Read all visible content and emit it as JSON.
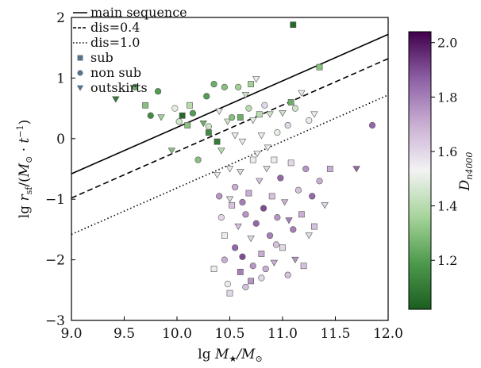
{
  "chart_data": {
    "type": "scatter",
    "xlabel_parts": [
      "lg ",
      "M",
      "★",
      "/M",
      "⊙"
    ],
    "ylabel_parts": [
      "lg ",
      "r",
      "sf",
      "/(",
      "M",
      "⊙",
      " · ",
      "t",
      "−1",
      ")"
    ],
    "xlim": [
      9.0,
      12.0
    ],
    "ylim": [
      -3,
      2
    ],
    "xticks": [
      9.0,
      9.5,
      10.0,
      10.5,
      11.0,
      11.5,
      12.0
    ],
    "xtick_labels": [
      "9.0",
      "9.5",
      "10.0",
      "10.5",
      "11.0",
      "11.5",
      "12.0"
    ],
    "yticks": [
      -3,
      -2,
      -1,
      0,
      1,
      2
    ],
    "ytick_labels": [
      "−3",
      "−2",
      "−1",
      "0",
      "1",
      "2"
    ],
    "lines": [
      {
        "name": "main sequence",
        "style": "solid",
        "x": [
          9.0,
          12.0
        ],
        "y": [
          -0.58,
          1.72
        ]
      },
      {
        "name": "dis=0.4",
        "style": "dashed",
        "x": [
          9.0,
          12.0
        ],
        "y": [
          -0.98,
          1.32
        ]
      },
      {
        "name": "dis=1.0",
        "style": "dotted",
        "x": [
          9.0,
          12.0
        ],
        "y": [
          -1.58,
          0.72
        ]
      }
    ],
    "marker_legend": [
      {
        "name": "sub",
        "marker": "square"
      },
      {
        "name": "non sub",
        "marker": "circle"
      },
      {
        "name": "outskirts",
        "marker": "triangle"
      }
    ],
    "colorbar": {
      "label_main": "D",
      "label_sub": "n4000",
      "range": [
        1.02,
        2.04
      ],
      "ticks": [
        1.2,
        1.4,
        1.6,
        1.8,
        2.0
      ],
      "tick_labels": [
        "1.2",
        "1.4",
        "1.6",
        "1.8",
        "2.0"
      ],
      "colors": [
        "#1b5e20",
        "#4d9a4d",
        "#a6d49a",
        "#f3f3f3",
        "#c9aed3",
        "#8c5ea3",
        "#40004b"
      ]
    },
    "points": [
      {
        "x": 9.42,
        "y": 0.65,
        "m": "tri",
        "c": 1.1
      },
      {
        "x": 9.6,
        "y": 0.85,
        "m": "circle",
        "c": 1.25
      },
      {
        "x": 9.7,
        "y": 0.55,
        "m": "square",
        "c": 1.3
      },
      {
        "x": 9.75,
        "y": 0.38,
        "m": "circle",
        "c": 1.15
      },
      {
        "x": 9.82,
        "y": 0.78,
        "m": "circle",
        "c": 1.2
      },
      {
        "x": 9.85,
        "y": 0.35,
        "m": "tri",
        "c": 1.35
      },
      {
        "x": 9.95,
        "y": -0.2,
        "m": "tri",
        "c": 1.3
      },
      {
        "x": 9.98,
        "y": 0.5,
        "m": "circle",
        "c": 1.5
      },
      {
        "x": 10.02,
        "y": 0.28,
        "m": "circle",
        "c": 1.45
      },
      {
        "x": 10.05,
        "y": 0.38,
        "m": "square",
        "c": 1.05
      },
      {
        "x": 10.1,
        "y": 0.22,
        "m": "square",
        "c": 1.3
      },
      {
        "x": 10.12,
        "y": 0.55,
        "m": "square",
        "c": 1.4
      },
      {
        "x": 10.15,
        "y": 0.42,
        "m": "circle",
        "c": 1.2
      },
      {
        "x": 10.2,
        "y": -0.35,
        "m": "circle",
        "c": 1.3
      },
      {
        "x": 10.25,
        "y": 0.25,
        "m": "tri",
        "c": 1.25
      },
      {
        "x": 10.28,
        "y": 0.7,
        "m": "circle",
        "c": 1.2
      },
      {
        "x": 10.3,
        "y": 0.2,
        "m": "circle",
        "c": 1.45
      },
      {
        "x": 10.3,
        "y": 0.1,
        "m": "square",
        "c": 1.15
      },
      {
        "x": 10.35,
        "y": 0.9,
        "m": "circle",
        "c": 1.25
      },
      {
        "x": 10.38,
        "y": -0.05,
        "m": "square",
        "c": 1.1
      },
      {
        "x": 10.4,
        "y": 0.45,
        "m": "tri",
        "c": 1.5
      },
      {
        "x": 10.42,
        "y": -0.2,
        "m": "tri",
        "c": 1.4
      },
      {
        "x": 10.45,
        "y": 0.85,
        "m": "circle",
        "c": 1.3
      },
      {
        "x": 10.48,
        "y": 0.28,
        "m": "tri",
        "c": 1.45
      },
      {
        "x": 10.5,
        "y": -0.5,
        "m": "tri",
        "c": 1.55
      },
      {
        "x": 10.52,
        "y": 0.35,
        "m": "circle",
        "c": 1.3
      },
      {
        "x": 10.55,
        "y": 0.05,
        "m": "tri",
        "c": 1.5
      },
      {
        "x": 10.58,
        "y": 0.85,
        "m": "circle",
        "c": 1.35
      },
      {
        "x": 10.6,
        "y": 0.35,
        "m": "square",
        "c": 1.25
      },
      {
        "x": 10.62,
        "y": -0.05,
        "m": "tri",
        "c": 1.55
      },
      {
        "x": 10.65,
        "y": 0.72,
        "m": "tri",
        "c": 1.45
      },
      {
        "x": 10.68,
        "y": 0.5,
        "m": "circle",
        "c": 1.4
      },
      {
        "x": 10.7,
        "y": 0.9,
        "m": "square",
        "c": 1.35
      },
      {
        "x": 10.72,
        "y": 0.3,
        "m": "tri",
        "c": 1.5
      },
      {
        "x": 10.75,
        "y": 0.98,
        "m": "tri",
        "c": 1.55
      },
      {
        "x": 10.78,
        "y": 0.4,
        "m": "square",
        "c": 1.4
      },
      {
        "x": 10.8,
        "y": 0.05,
        "m": "tri",
        "c": 1.55
      },
      {
        "x": 10.83,
        "y": 0.55,
        "m": "circle",
        "c": 1.6
      },
      {
        "x": 10.86,
        "y": -0.15,
        "m": "tri",
        "c": 1.5
      },
      {
        "x": 10.88,
        "y": 0.4,
        "m": "tri",
        "c": 1.45
      },
      {
        "x": 10.92,
        "y": -0.35,
        "m": "square",
        "c": 1.55
      },
      {
        "x": 10.95,
        "y": 0.1,
        "m": "circle",
        "c": 1.5
      },
      {
        "x": 11.0,
        "y": 0.42,
        "m": "tri",
        "c": 1.45
      },
      {
        "x": 11.05,
        "y": 0.22,
        "m": "circle",
        "c": 1.6
      },
      {
        "x": 11.08,
        "y": 0.6,
        "m": "square",
        "c": 1.25
      },
      {
        "x": 11.1,
        "y": 1.88,
        "m": "square",
        "c": 1.05
      },
      {
        "x": 11.12,
        "y": 0.5,
        "m": "circle",
        "c": 1.45
      },
      {
        "x": 11.18,
        "y": 0.75,
        "m": "tri",
        "c": 1.5
      },
      {
        "x": 11.25,
        "y": 0.3,
        "m": "circle",
        "c": 1.5
      },
      {
        "x": 11.3,
        "y": 0.4,
        "m": "tri",
        "c": 1.55
      },
      {
        "x": 11.35,
        "y": 1.18,
        "m": "square",
        "c": 1.3
      },
      {
        "x": 11.7,
        "y": -0.5,
        "m": "tri",
        "c": 1.85
      },
      {
        "x": 11.85,
        "y": 0.22,
        "m": "circle",
        "c": 1.85
      },
      {
        "x": 10.4,
        "y": -0.95,
        "m": "circle",
        "c": 1.75
      },
      {
        "x": 10.42,
        "y": -1.3,
        "m": "circle",
        "c": 1.6
      },
      {
        "x": 10.45,
        "y": -1.6,
        "m": "square",
        "c": 1.55
      },
      {
        "x": 10.45,
        "y": -2.0,
        "m": "circle",
        "c": 1.7
      },
      {
        "x": 10.48,
        "y": -2.4,
        "m": "circle",
        "c": 1.55
      },
      {
        "x": 10.5,
        "y": -2.55,
        "m": "square",
        "c": 1.6
      },
      {
        "x": 10.52,
        "y": -1.1,
        "m": "square",
        "c": 1.65
      },
      {
        "x": 10.55,
        "y": -1.8,
        "m": "circle",
        "c": 1.85
      },
      {
        "x": 10.55,
        "y": -0.8,
        "m": "circle",
        "c": 1.7
      },
      {
        "x": 10.58,
        "y": -1.45,
        "m": "tri",
        "c": 1.65
      },
      {
        "x": 10.6,
        "y": -2.2,
        "m": "square",
        "c": 1.8
      },
      {
        "x": 10.6,
        "y": -0.55,
        "m": "tri",
        "c": 1.6
      },
      {
        "x": 10.62,
        "y": -1.95,
        "m": "circle",
        "c": 1.9
      },
      {
        "x": 10.65,
        "y": -1.25,
        "m": "circle",
        "c": 1.75
      },
      {
        "x": 10.65,
        "y": -2.45,
        "m": "circle",
        "c": 1.65
      },
      {
        "x": 10.68,
        "y": -0.9,
        "m": "square",
        "c": 1.7
      },
      {
        "x": 10.7,
        "y": -1.65,
        "m": "tri",
        "c": 1.6
      },
      {
        "x": 10.72,
        "y": -2.1,
        "m": "circle",
        "c": 1.75
      },
      {
        "x": 10.72,
        "y": -0.35,
        "m": "square",
        "c": 1.55
      },
      {
        "x": 10.75,
        "y": -1.4,
        "m": "circle",
        "c": 1.85
      },
      {
        "x": 10.78,
        "y": -0.7,
        "m": "tri",
        "c": 1.65
      },
      {
        "x": 10.8,
        "y": -1.9,
        "m": "square",
        "c": 1.7
      },
      {
        "x": 10.8,
        "y": -2.3,
        "m": "circle",
        "c": 1.6
      },
      {
        "x": 10.82,
        "y": -1.15,
        "m": "circle",
        "c": 1.9
      },
      {
        "x": 10.85,
        "y": -0.5,
        "m": "tri",
        "c": 1.6
      },
      {
        "x": 10.88,
        "y": -1.6,
        "m": "circle",
        "c": 1.8
      },
      {
        "x": 10.9,
        "y": -0.95,
        "m": "square",
        "c": 1.65
      },
      {
        "x": 10.92,
        "y": -2.05,
        "m": "tri",
        "c": 1.7
      },
      {
        "x": 10.95,
        "y": -1.3,
        "m": "circle",
        "c": 1.75
      },
      {
        "x": 10.98,
        "y": -0.65,
        "m": "circle",
        "c": 1.85
      },
      {
        "x": 11.0,
        "y": -1.8,
        "m": "square",
        "c": 1.6
      },
      {
        "x": 11.02,
        "y": -1.05,
        "m": "tri",
        "c": 1.7
      },
      {
        "x": 11.05,
        "y": -2.25,
        "m": "circle",
        "c": 1.65
      },
      {
        "x": 11.08,
        "y": -0.4,
        "m": "square",
        "c": 1.6
      },
      {
        "x": 11.1,
        "y": -1.5,
        "m": "circle",
        "c": 1.8
      },
      {
        "x": 11.12,
        "y": -2.0,
        "m": "tri",
        "c": 1.75
      },
      {
        "x": 11.15,
        "y": -0.85,
        "m": "circle",
        "c": 1.65
      },
      {
        "x": 11.18,
        "y": -1.25,
        "m": "square",
        "c": 1.7
      },
      {
        "x": 11.22,
        "y": -0.5,
        "m": "circle",
        "c": 1.75
      },
      {
        "x": 11.25,
        "y": -1.6,
        "m": "tri",
        "c": 1.6
      },
      {
        "x": 11.28,
        "y": -0.95,
        "m": "circle",
        "c": 1.85
      },
      {
        "x": 11.3,
        "y": -1.45,
        "m": "square",
        "c": 1.65
      },
      {
        "x": 11.35,
        "y": -0.7,
        "m": "circle",
        "c": 1.7
      },
      {
        "x": 11.4,
        "y": -1.1,
        "m": "tri",
        "c": 1.6
      },
      {
        "x": 11.45,
        "y": -0.5,
        "m": "square",
        "c": 1.7
      },
      {
        "x": 10.35,
        "y": -2.15,
        "m": "square",
        "c": 1.55
      },
      {
        "x": 10.38,
        "y": -0.6,
        "m": "tri",
        "c": 1.55
      },
      {
        "x": 10.5,
        "y": -1.0,
        "m": "tri",
        "c": 1.6
      },
      {
        "x": 10.62,
        "y": -1.05,
        "m": "circle",
        "c": 1.8
      },
      {
        "x": 10.7,
        "y": -2.35,
        "m": "square",
        "c": 1.75
      },
      {
        "x": 10.76,
        "y": -0.25,
        "m": "tri",
        "c": 1.55
      },
      {
        "x": 10.84,
        "y": -2.15,
        "m": "circle",
        "c": 1.7
      },
      {
        "x": 10.94,
        "y": -1.75,
        "m": "circle",
        "c": 1.65
      },
      {
        "x": 11.06,
        "y": -1.35,
        "m": "tri",
        "c": 1.8
      },
      {
        "x": 11.2,
        "y": -2.1,
        "m": "square",
        "c": 1.65
      }
    ]
  }
}
